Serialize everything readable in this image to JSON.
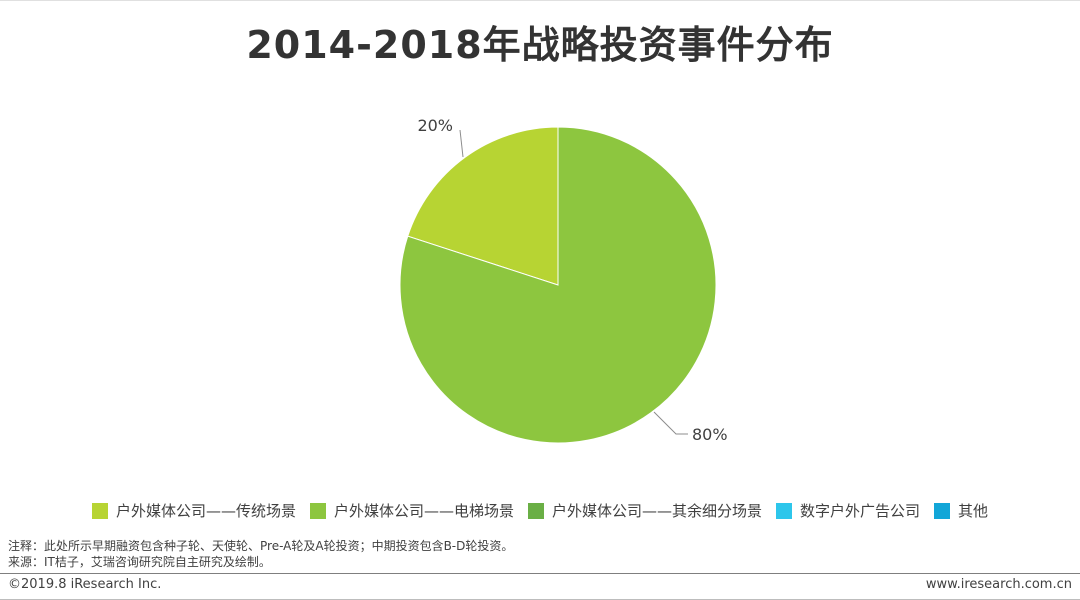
{
  "chart_data": {
    "type": "pie",
    "title": "2014-2018年战略投资事件分布",
    "categories": [
      "户外媒体公司——传统场景",
      "户外媒体公司——电梯场景",
      "户外媒体公司——其余细分场景",
      "数字户外广告公司",
      "其他"
    ],
    "values": [
      20,
      80,
      0,
      0,
      0
    ],
    "data_labels": [
      "20%",
      "80%",
      "",
      "",
      ""
    ],
    "colors": [
      "#b7d433",
      "#8dc63f",
      "#6aaf45",
      "#2dc6eb",
      "#12a6d8"
    ],
    "legend_position": "bottom"
  },
  "notes": {
    "line1": "注释：此处所示早期融资包含种子轮、天使轮、Pre-A轮及A轮投资；中期投资包含B-D轮投资。",
    "line2": "来源：IT桔子，艾瑞咨询研究院自主研究及绘制。"
  },
  "footer": {
    "copyright": "©2019.8 iResearch Inc.",
    "website": "www.iresearch.com.cn"
  }
}
